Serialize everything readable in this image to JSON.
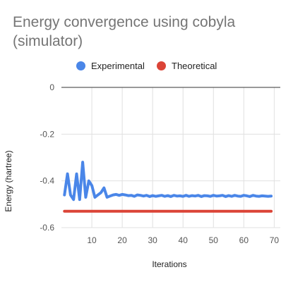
{
  "chart_data": {
    "type": "line",
    "title": "Energy convergence using cobyla (simulator)",
    "xlabel": "Iterations",
    "ylabel": "Energy (hartree)",
    "xlim": [
      0,
      72
    ],
    "ylim": [
      -0.6,
      0
    ],
    "x_ticks": [
      10,
      20,
      30,
      40,
      50,
      60,
      70
    ],
    "y_ticks": [
      0,
      -0.2,
      -0.4,
      -0.6
    ],
    "x_tick_labels": [
      "10",
      "20",
      "30",
      "40",
      "50",
      "60",
      "70"
    ],
    "y_tick_labels": [
      "0",
      "-0.2",
      "-0.4",
      "-0.6"
    ],
    "grid": true,
    "legend_position": "top",
    "series": [
      {
        "name": "Experimental",
        "color": "#4a86e8",
        "x": [
          1,
          2,
          3,
          4,
          5,
          6,
          7,
          8,
          9,
          10,
          11,
          12,
          13,
          14,
          15,
          16,
          17,
          18,
          19,
          20,
          21,
          22,
          23,
          24,
          25,
          26,
          27,
          28,
          29,
          30,
          31,
          32,
          33,
          34,
          35,
          36,
          37,
          38,
          39,
          40,
          41,
          42,
          43,
          44,
          45,
          46,
          47,
          48,
          49,
          50,
          51,
          52,
          53,
          54,
          55,
          56,
          57,
          58,
          59,
          60,
          61,
          62,
          63,
          64,
          65,
          66,
          67,
          68,
          69
        ],
        "values": [
          -0.46,
          -0.37,
          -0.46,
          -0.48,
          -0.37,
          -0.48,
          -0.32,
          -0.47,
          -0.4,
          -0.42,
          -0.47,
          -0.46,
          -0.45,
          -0.43,
          -0.47,
          -0.465,
          -0.46,
          -0.458,
          -0.462,
          -0.458,
          -0.46,
          -0.463,
          -0.462,
          -0.466,
          -0.46,
          -0.462,
          -0.465,
          -0.462,
          -0.467,
          -0.463,
          -0.466,
          -0.464,
          -0.462,
          -0.466,
          -0.463,
          -0.467,
          -0.462,
          -0.465,
          -0.464,
          -0.466,
          -0.462,
          -0.466,
          -0.463,
          -0.465,
          -0.462,
          -0.467,
          -0.463,
          -0.464,
          -0.466,
          -0.462,
          -0.465,
          -0.464,
          -0.462,
          -0.467,
          -0.463,
          -0.466,
          -0.462,
          -0.465,
          -0.466,
          -0.462,
          -0.464,
          -0.467,
          -0.462,
          -0.465,
          -0.466,
          -0.464,
          -0.465,
          -0.466,
          -0.465
        ]
      },
      {
        "name": "Theoretical",
        "color": "#db4437",
        "x": [
          1,
          69
        ],
        "values": [
          -0.53,
          -0.53
        ]
      }
    ]
  }
}
